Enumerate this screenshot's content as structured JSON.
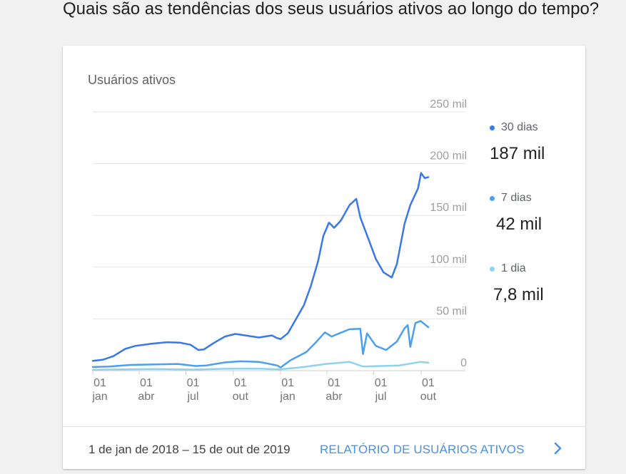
{
  "page": {
    "question": "Quais são as tendências dos seus usuários ativos ao longo do tempo?"
  },
  "card": {
    "title": "Usuários ativos",
    "legend": [
      {
        "label": "30 dias",
        "value": "187 mil",
        "color": "#3a78e7"
      },
      {
        "label": "7 dias",
        "value": "42 mil",
        "color": "#4aa0ef"
      },
      {
        "label": "1 dia",
        "value": "7,8 mil",
        "color": "#8fd2ec"
      }
    ],
    "footer": {
      "date_range": "1 de jan de 2018 – 15 de out de 2019",
      "report_link": "RELATÓRIO DE USUÁRIOS ATIVOS",
      "chevron_icon": "chevron-right-icon"
    }
  },
  "chart_data": {
    "type": "line",
    "ylim": [
      0,
      250000
    ],
    "y_ticks": [
      {
        "value": 0,
        "label": "0"
      },
      {
        "value": 50000,
        "label": "50 mil"
      },
      {
        "value": 100000,
        "label": "100 mil"
      },
      {
        "value": 150000,
        "label": "150 mil"
      },
      {
        "value": 200000,
        "label": "200 mil"
      },
      {
        "value": 250000,
        "label": "250 mil"
      }
    ],
    "x_range": [
      "2018-01-01",
      "2019-10-15"
    ],
    "x_ticks": [
      {
        "date": "2018-01-01",
        "day": "01",
        "month": "jan"
      },
      {
        "date": "2018-04-01",
        "day": "01",
        "month": "abr"
      },
      {
        "date": "2018-07-01",
        "day": "01",
        "month": "jul"
      },
      {
        "date": "2018-10-01",
        "day": "01",
        "month": "out"
      },
      {
        "date": "2019-01-01",
        "day": "01",
        "month": "jan"
      },
      {
        "date": "2019-04-01",
        "day": "01",
        "month": "abr"
      },
      {
        "date": "2019-07-01",
        "day": "01",
        "month": "jul"
      },
      {
        "date": "2019-10-01",
        "day": "01",
        "month": "out"
      }
    ],
    "series": [
      {
        "name": "30 dias",
        "color": "#3a78e7",
        "points": [
          [
            "2018-01-01",
            9500
          ],
          [
            "2018-01-20",
            10500
          ],
          [
            "2018-02-10",
            14000
          ],
          [
            "2018-03-05",
            21000
          ],
          [
            "2018-03-25",
            24000
          ],
          [
            "2018-04-25",
            26000
          ],
          [
            "2018-05-25",
            27500
          ],
          [
            "2018-06-20",
            27000
          ],
          [
            "2018-07-10",
            25000
          ],
          [
            "2018-07-25",
            20000
          ],
          [
            "2018-08-05",
            20500
          ],
          [
            "2018-08-25",
            27000
          ],
          [
            "2018-09-15",
            33000
          ],
          [
            "2018-10-05",
            35500
          ],
          [
            "2018-10-25",
            34000
          ],
          [
            "2018-11-20",
            32000
          ],
          [
            "2018-12-15",
            34000
          ],
          [
            "2018-12-25",
            31500
          ],
          [
            "2019-01-01",
            30500
          ],
          [
            "2019-01-15",
            36000
          ],
          [
            "2019-01-30",
            49000
          ],
          [
            "2019-02-15",
            63000
          ],
          [
            "2019-03-01",
            82000
          ],
          [
            "2019-03-15",
            106000
          ],
          [
            "2019-03-25",
            130000
          ],
          [
            "2019-04-05",
            143000
          ],
          [
            "2019-04-15",
            138000
          ],
          [
            "2019-04-28",
            145000
          ],
          [
            "2019-05-15",
            160000
          ],
          [
            "2019-05-28",
            166000
          ],
          [
            "2019-06-05",
            148000
          ],
          [
            "2019-06-20",
            128000
          ],
          [
            "2019-07-05",
            108000
          ],
          [
            "2019-07-20",
            95000
          ],
          [
            "2019-08-05",
            90000
          ],
          [
            "2019-08-15",
            103000
          ],
          [
            "2019-08-30",
            142000
          ],
          [
            "2019-09-10",
            160000
          ],
          [
            "2019-09-25",
            176000
          ],
          [
            "2019-10-01",
            191000
          ],
          [
            "2019-10-08",
            186000
          ],
          [
            "2019-10-15",
            187000
          ]
        ]
      },
      {
        "name": "7 dias",
        "color": "#4aa0ef",
        "points": [
          [
            "2018-01-01",
            3500
          ],
          [
            "2018-02-01",
            4000
          ],
          [
            "2018-03-15",
            5500
          ],
          [
            "2018-05-01",
            6000
          ],
          [
            "2018-06-15",
            6500
          ],
          [
            "2018-07-20",
            4500
          ],
          [
            "2018-08-10",
            5000
          ],
          [
            "2018-09-15",
            8000
          ],
          [
            "2018-10-15",
            9000
          ],
          [
            "2018-11-20",
            8500
          ],
          [
            "2018-12-25",
            5000
          ],
          [
            "2019-01-01",
            3000
          ],
          [
            "2019-01-20",
            10000
          ],
          [
            "2019-02-20",
            18000
          ],
          [
            "2019-03-10",
            27000
          ],
          [
            "2019-03-28",
            37000
          ],
          [
            "2019-04-10",
            33000
          ],
          [
            "2019-04-25",
            36000
          ],
          [
            "2019-05-15",
            40000
          ],
          [
            "2019-06-05",
            40500
          ],
          [
            "2019-06-10",
            16000
          ],
          [
            "2019-06-18",
            36000
          ],
          [
            "2019-07-05",
            24000
          ],
          [
            "2019-07-25",
            20000
          ],
          [
            "2019-08-15",
            28000
          ],
          [
            "2019-08-30",
            41000
          ],
          [
            "2019-09-05",
            44000
          ],
          [
            "2019-09-10",
            23000
          ],
          [
            "2019-09-20",
            46000
          ],
          [
            "2019-09-30",
            48000
          ],
          [
            "2019-10-15",
            42000
          ]
        ]
      },
      {
        "name": "1 dia",
        "color": "#8fd2ec",
        "points": [
          [
            "2018-01-01",
            800
          ],
          [
            "2018-03-01",
            1200
          ],
          [
            "2018-05-01",
            1500
          ],
          [
            "2018-07-15",
            1000
          ],
          [
            "2018-09-15",
            1800
          ],
          [
            "2018-11-15",
            2000
          ],
          [
            "2019-01-01",
            1200
          ],
          [
            "2019-02-15",
            3500
          ],
          [
            "2019-03-30",
            6500
          ],
          [
            "2019-05-15",
            8500
          ],
          [
            "2019-06-10",
            4000
          ],
          [
            "2019-07-15",
            4500
          ],
          [
            "2019-08-20",
            5000
          ],
          [
            "2019-09-30",
            8500
          ],
          [
            "2019-10-15",
            7800
          ]
        ]
      }
    ]
  }
}
